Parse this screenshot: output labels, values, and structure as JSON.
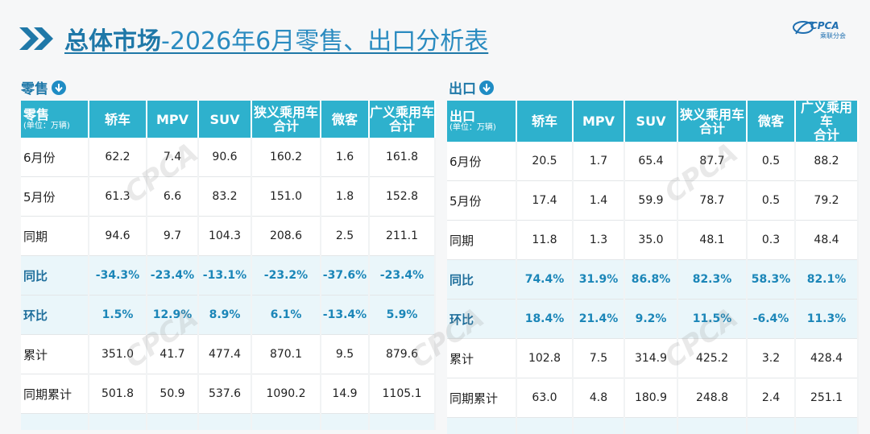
{
  "title": {
    "main": "总体市场",
    "rest": "-2026年6月零售、出口分析表"
  },
  "logo": {
    "brand": "CPCA",
    "subtitle": "乘联分会"
  },
  "colors": {
    "header": "#2eb1cd",
    "accent": "#1f78a8",
    "highlight_row": "#eaf6fa"
  },
  "columns": [
    "轿车",
    "MPV",
    "SUV",
    "狭义乘用车\n合计",
    "微客",
    "广义乘用车\n合计"
  ],
  "retail": {
    "section_label": "零售",
    "header_label": "零售",
    "unit": "(单位：万辆)",
    "rows": [
      {
        "label": "6月份",
        "values": [
          "62.2",
          "7.4",
          "90.6",
          "160.2",
          "1.6",
          "161.8"
        ],
        "hl": false
      },
      {
        "label": "5月份",
        "values": [
          "61.3",
          "6.6",
          "83.2",
          "151.0",
          "1.8",
          "152.8"
        ],
        "hl": false
      },
      {
        "label": "同期",
        "values": [
          "94.6",
          "9.7",
          "104.3",
          "208.6",
          "2.5",
          "211.1"
        ],
        "hl": false
      },
      {
        "label": "同比",
        "values": [
          "-34.3%",
          "-23.4%",
          "-13.1%",
          "-23.2%",
          "-37.6%",
          "-23.4%"
        ],
        "hl": true
      },
      {
        "label": "环比",
        "values": [
          "1.5%",
          "12.9%",
          "8.9%",
          "6.1%",
          "-13.4%",
          "5.9%"
        ],
        "hl": true
      },
      {
        "label": "累计",
        "values": [
          "351.0",
          "41.7",
          "477.4",
          "870.1",
          "9.5",
          "879.6"
        ],
        "hl": false
      },
      {
        "label": "同期累计",
        "values": [
          "501.8",
          "50.9",
          "537.6",
          "1090.2",
          "14.9",
          "1105.1"
        ],
        "hl": false
      }
    ]
  },
  "export": {
    "section_label": "出口",
    "header_label": "出口",
    "unit": "(单位：万辆)",
    "rows": [
      {
        "label": "6月份",
        "values": [
          "20.5",
          "1.7",
          "65.4",
          "87.7",
          "0.5",
          "88.2"
        ],
        "hl": false
      },
      {
        "label": "5月份",
        "values": [
          "17.4",
          "1.4",
          "59.9",
          "78.7",
          "0.5",
          "79.2"
        ],
        "hl": false
      },
      {
        "label": "同期",
        "values": [
          "11.8",
          "1.3",
          "35.0",
          "48.1",
          "0.3",
          "48.4"
        ],
        "hl": false
      },
      {
        "label": "同比",
        "values": [
          "74.4%",
          "31.9%",
          "86.8%",
          "82.3%",
          "58.3%",
          "82.1%"
        ],
        "hl": true
      },
      {
        "label": "环比",
        "values": [
          "18.4%",
          "21.4%",
          "9.2%",
          "11.5%",
          "-6.4%",
          "11.3%"
        ],
        "hl": true
      },
      {
        "label": "累计",
        "values": [
          "102.8",
          "7.5",
          "314.9",
          "425.2",
          "3.2",
          "428.4"
        ],
        "hl": false
      },
      {
        "label": "同期累计",
        "values": [
          "63.0",
          "4.8",
          "180.9",
          "248.8",
          "2.4",
          "251.1"
        ],
        "hl": false
      }
    ]
  }
}
